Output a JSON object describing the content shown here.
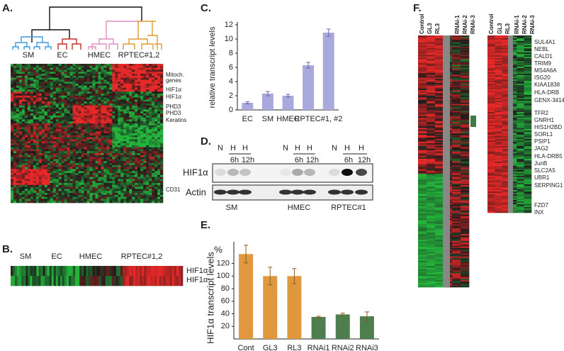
{
  "panels": {
    "a": "A.",
    "b": "B.",
    "c": "C.",
    "d": "D.",
    "e": "E.",
    "f": "F."
  },
  "panel_a": {
    "groups": [
      "SM",
      "EC",
      "HMEC",
      "RPTEC#1,2"
    ],
    "row_labels": [
      "Mitoch.",
      "genes",
      "HIF1α",
      "HIF1α",
      "PHD3",
      "PHD3",
      "Keratins",
      "CD31"
    ]
  },
  "panel_b": {
    "groups": [
      "SM",
      "EC",
      "HMEC",
      "RPTEC#1,2"
    ],
    "row_labels": [
      "HIF1α",
      "HIF1α"
    ]
  },
  "chart_data": [
    {
      "type": "bar",
      "y_label": "relative transcript levels",
      "categories": [
        "EC",
        "SM",
        "HMEC",
        "RPTEC#1, #2",
        null
      ],
      "values": [
        1.0,
        2.3,
        2.0,
        6.3,
        10.9
      ],
      "errors": [
        0.15,
        0.3,
        0.2,
        0.4,
        0.5
      ],
      "color": "#a9a9dd",
      "ylim": [
        0,
        12
      ],
      "yticks": [
        0,
        2,
        4,
        6,
        8,
        10,
        12
      ]
    },
    {
      "type": "bar",
      "y_label": "HIF1α transcript levels",
      "y_unit": "%",
      "categories": [
        "Cont",
        "GL3",
        "RL3",
        "RNAi1",
        "RNAi2",
        "RNAi3"
      ],
      "values": [
        135,
        100,
        100,
        35,
        39,
        36
      ],
      "errors": [
        14,
        14,
        12,
        1,
        2,
        7
      ],
      "colors": [
        "#e0983e",
        "#e0983e",
        "#e0983e",
        "#4e7d4e",
        "#4e7d4e",
        "#4e7d4e"
      ],
      "ylim": [
        0,
        150
      ],
      "yticks": [
        20,
        40,
        60,
        80,
        100,
        120
      ]
    }
  ],
  "panel_d": {
    "lanes": [
      "N",
      "H",
      "H",
      "N",
      "H",
      "H",
      "N",
      "H",
      "H"
    ],
    "times": [
      "6h",
      "12h",
      "6h",
      "12h",
      "6h",
      "12h"
    ],
    "rows": [
      "HIF1α",
      "Actin"
    ],
    "cells": [
      "SM",
      "HMEC",
      "RPTEC#1"
    ]
  },
  "panel_f": {
    "columns_left": [
      "Control",
      "GL3",
      "RL3",
      "RNAi-1",
      "RNAi-2",
      "RNAi-3"
    ],
    "columns_right": [
      "Control",
      "GL3",
      "RL3",
      "RNAi-1",
      "RNAi-2",
      "RNAi-3"
    ],
    "genes": [
      "SUL4A1",
      "NEBL",
      "CALD1",
      "TRIM9",
      "MS4A6A",
      "ISG20",
      "KIAA1838",
      "HLA-DRB",
      "GENX-3414",
      "TFR2",
      "GNRH1",
      "HIS1H2BD",
      "SORL1",
      "PSIP1",
      "JAG2",
      "HLA-DRB5",
      "JunB",
      "SLC2A5",
      "UBR1",
      "SERPING1",
      "FZD7",
      "INX"
    ]
  }
}
